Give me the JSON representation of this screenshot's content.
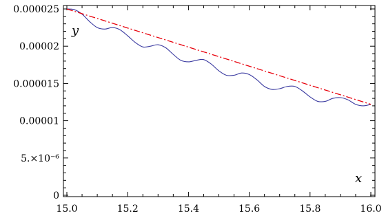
{
  "chart_data": {
    "type": "line",
    "xlabel": "x",
    "ylabel": "y",
    "xlim": [
      15.0,
      16.0
    ],
    "ylim": [
      0,
      2.5e-05
    ],
    "grid": false,
    "xticks": [
      {
        "value": 15.0,
        "label": "15.0"
      },
      {
        "value": 15.2,
        "label": "15.2"
      },
      {
        "value": 15.4,
        "label": "15.4"
      },
      {
        "value": 15.6,
        "label": "15.6"
      },
      {
        "value": 15.8,
        "label": "15.8"
      },
      {
        "value": 16.0,
        "label": "16.0"
      }
    ],
    "yticks": [
      {
        "value": 0,
        "label": "0"
      },
      {
        "value": 5e-06,
        "label": "5.×10⁻⁶"
      },
      {
        "value": 1e-05,
        "label": "0.00001"
      },
      {
        "value": 1.5e-05,
        "label": "0.000015"
      },
      {
        "value": 2e-05,
        "label": "0.00002"
      },
      {
        "value": 2.5e-05,
        "label": "0.000025"
      }
    ],
    "series": [
      {
        "style": "solid",
        "color": "#3a3aa0",
        "x": [
          15.0,
          15.025,
          15.05,
          15.075,
          15.1,
          15.125,
          15.15,
          15.175,
          15.2,
          15.225,
          15.25,
          15.275,
          15.3,
          15.325,
          15.35,
          15.375,
          15.4,
          15.425,
          15.45,
          15.475,
          15.5,
          15.525,
          15.55,
          15.575,
          15.6,
          15.625,
          15.65,
          15.675,
          15.7,
          15.725,
          15.75,
          15.775,
          15.8,
          15.825,
          15.85,
          15.875,
          15.9,
          15.925,
          15.95,
          15.975,
          16.0
        ],
        "y": [
          2.5e-05,
          2.49e-05,
          2.43e-05,
          2.33e-05,
          2.25e-05,
          2.23e-05,
          2.25e-05,
          2.22e-05,
          2.14e-05,
          2.05e-05,
          1.99e-05,
          2e-05,
          2.02e-05,
          1.98e-05,
          1.89e-05,
          1.81e-05,
          1.79e-05,
          1.81e-05,
          1.82e-05,
          1.76e-05,
          1.67e-05,
          1.61e-05,
          1.61e-05,
          1.64e-05,
          1.62e-05,
          1.55e-05,
          1.46e-05,
          1.42e-05,
          1.43e-05,
          1.46e-05,
          1.46e-05,
          1.4e-05,
          1.32e-05,
          1.26e-05,
          1.26e-05,
          1.3e-05,
          1.31e-05,
          1.28e-05,
          1.22e-05,
          1.2e-05,
          1.22e-05
        ]
      },
      {
        "style": "dashed",
        "color": "#e8000b",
        "x": [
          15.0,
          16.0
        ],
        "y": [
          2.5e-05,
          1.22e-05
        ]
      }
    ]
  }
}
